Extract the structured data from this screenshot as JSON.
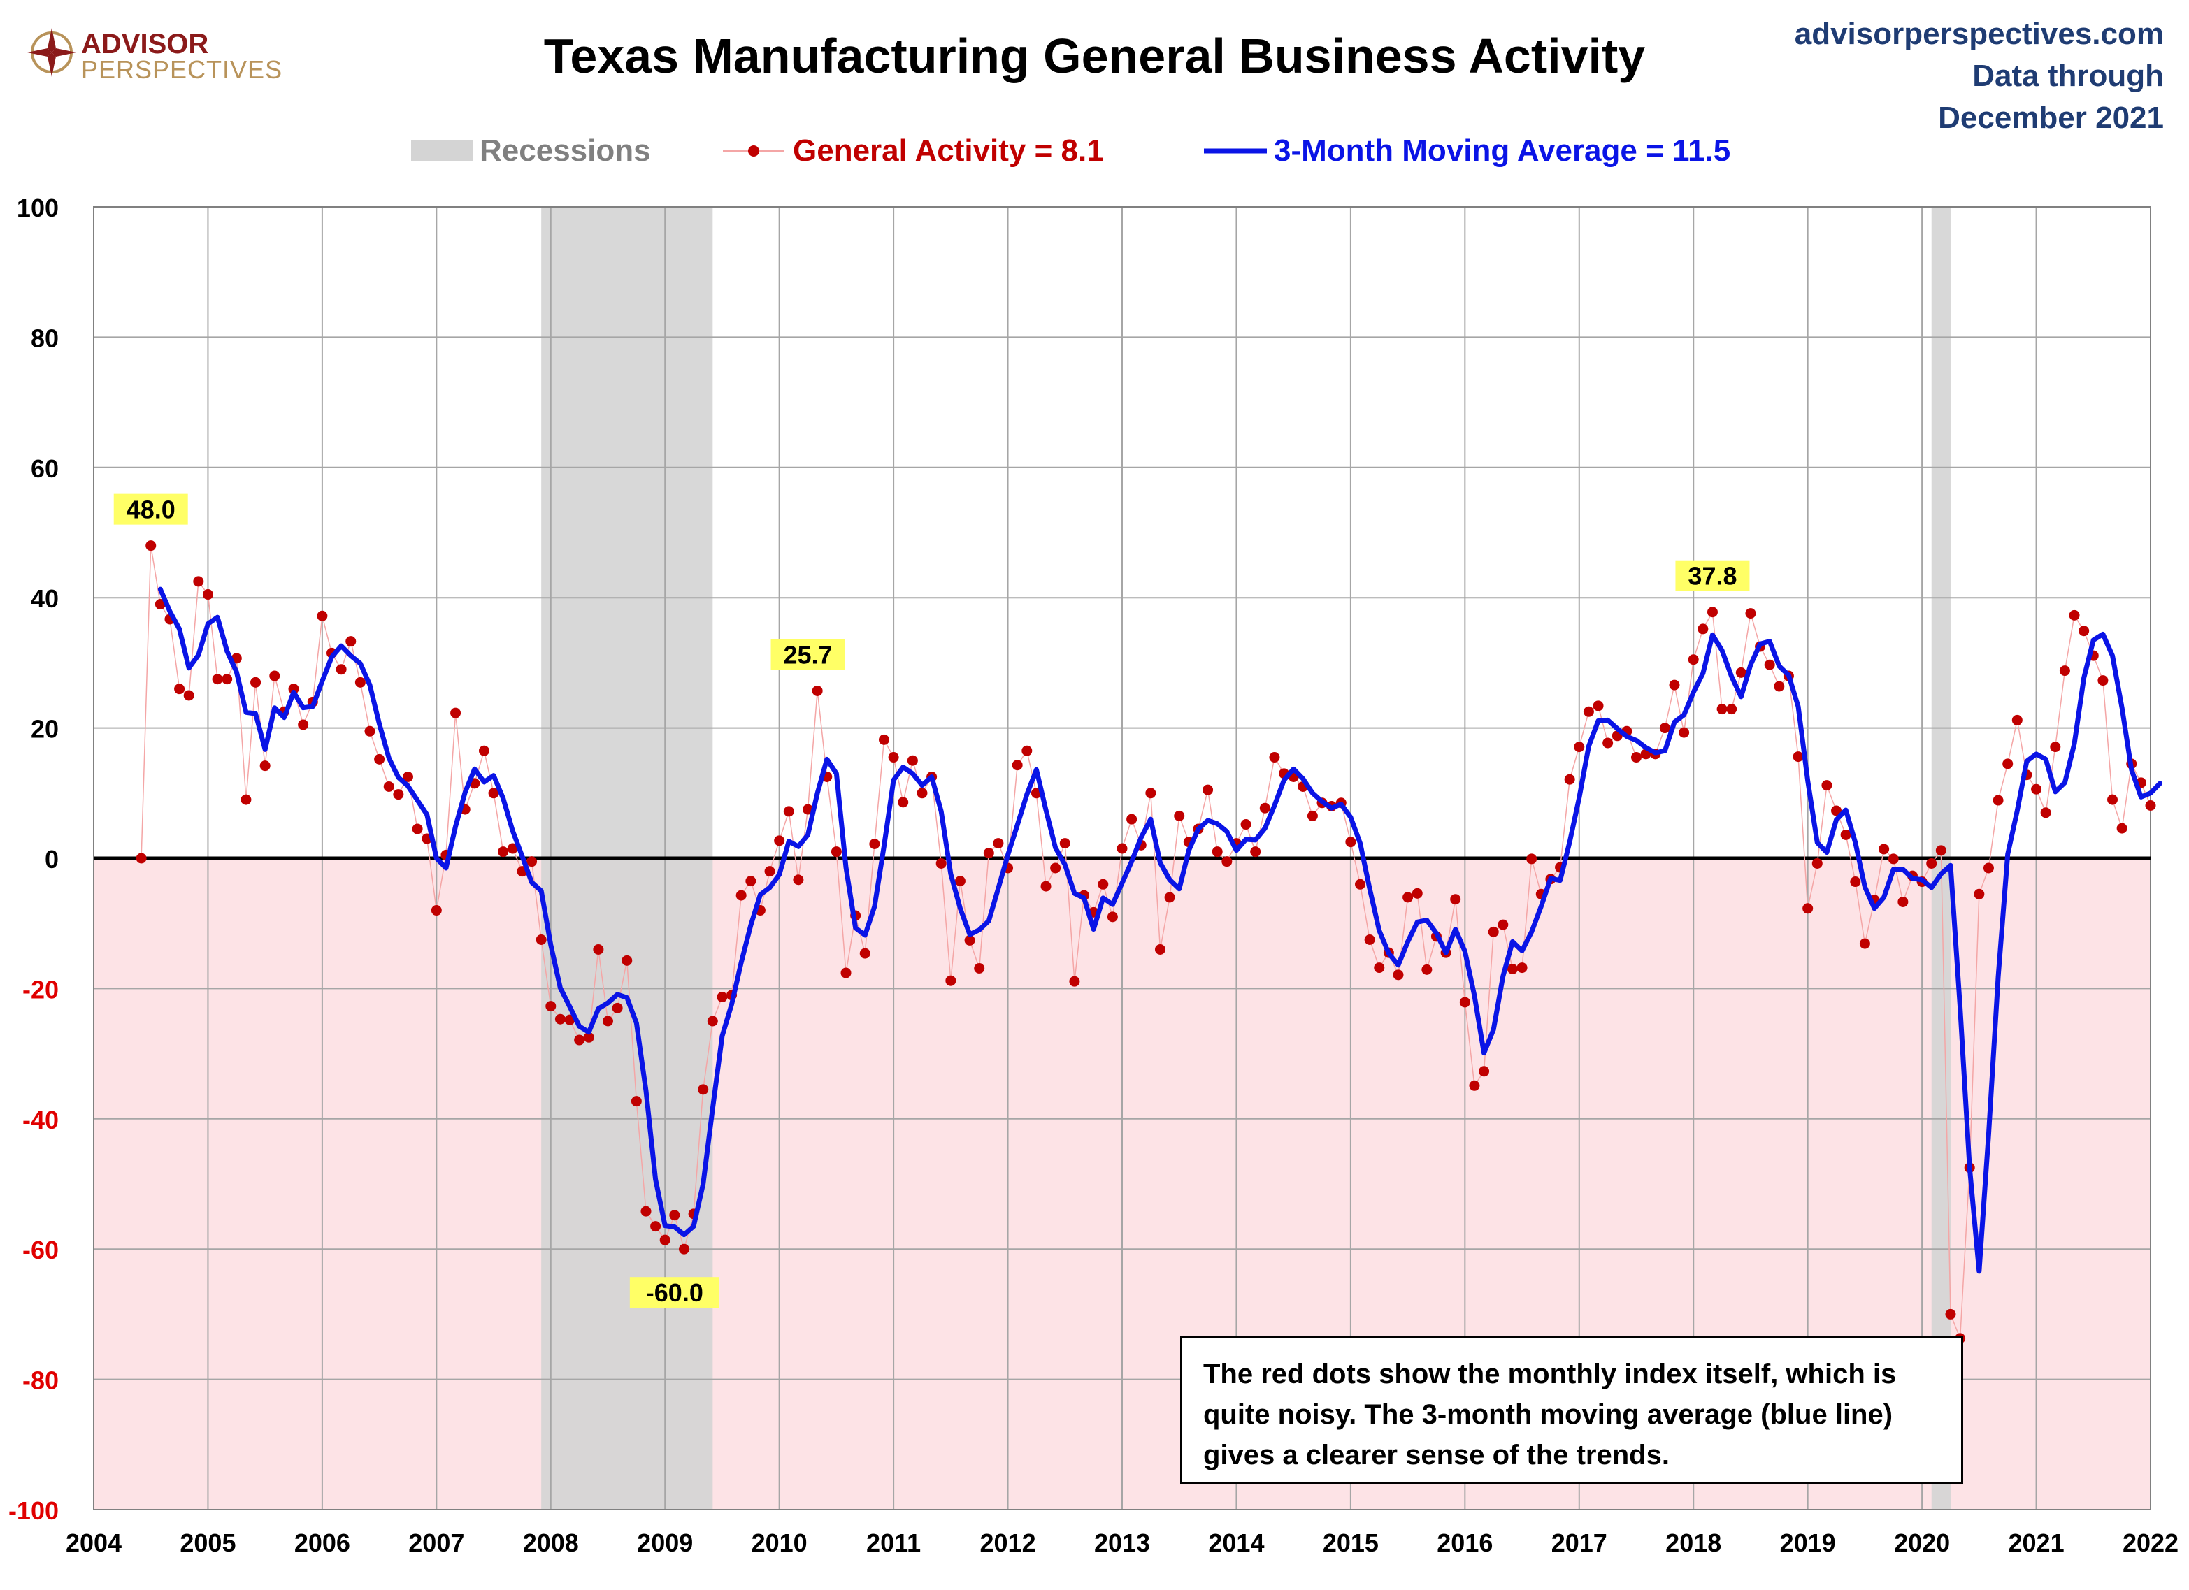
{
  "header": {
    "logo_line1": "ADVISOR",
    "logo_line2": "PERSPECTIVES",
    "title": "Texas Manufacturing General Business Activity",
    "source_site": "advisorperspectives.com",
    "source_line1": "Data through",
    "source_line2": "December 2021"
  },
  "legend": {
    "recessions": "Recessions",
    "series1": "General Activity = 8.1",
    "series2": "3-Month Moving Average = 11.5"
  },
  "callout": "The red dots show the monthly  index itself, which is quite noisy. The 3-month moving average (blue line) gives a clearer sense of the trends.",
  "colors": {
    "dots": "#c00000",
    "ma_line": "#0a14e6",
    "recession": "#d4d4d4",
    "negative_zone": "#fde3e6",
    "annotation_bg": "#ffff66",
    "source_text": "#1f3c73",
    "logo_gold": "#b8935a",
    "logo_red": "#8b1a1a"
  },
  "chart_data": {
    "type": "line",
    "title": "Texas Manufacturing General Business Activity",
    "x_range": [
      2004,
      2022
    ],
    "ylim": [
      -100,
      100
    ],
    "x_ticks": [
      "2004",
      "2005",
      "2006",
      "2007",
      "2008",
      "2009",
      "2010",
      "2011",
      "2012",
      "2013",
      "2014",
      "2015",
      "2016",
      "2017",
      "2018",
      "2019",
      "2020",
      "2021",
      "2022"
    ],
    "y_ticks": [
      100,
      80,
      60,
      40,
      20,
      0,
      -20,
      -40,
      -60,
      -80,
      -100
    ],
    "grid": true,
    "legend_position": "top",
    "recessions": [
      {
        "start": "2007-12",
        "end": "2009-06"
      },
      {
        "start": "2020-02",
        "end": "2020-04"
      }
    ],
    "start_month": "2004-06",
    "series": [
      {
        "name": "General Activity = 8.1",
        "style": "dots",
        "values": [
          0,
          48,
          39,
          36.7,
          26,
          25,
          42.5,
          40.5,
          27.5,
          27.5,
          30.7,
          9,
          27,
          14.2,
          28,
          22.5,
          26,
          20.5,
          24,
          37.2,
          31.5,
          29,
          33.3,
          27,
          19.5,
          15.2,
          11,
          9.8,
          12.5,
          4.5,
          3,
          -8,
          0.5,
          22.3,
          7.5,
          11.5,
          16.5,
          10,
          1,
          1.5,
          -2,
          -0.5,
          -12.5,
          -22.7,
          -24.7,
          -24.8,
          -27.9,
          -27.5,
          -14,
          -25,
          -23,
          -15.7,
          -37.3,
          -54.2,
          -56.5,
          -58.6,
          -54.8,
          -60,
          -54.6,
          -35.5,
          -25,
          -21.3,
          -21,
          -5.7,
          -3.5,
          -8,
          -2,
          2.7,
          7.2,
          -3.3,
          7.5,
          25.7,
          12.5,
          1,
          -17.6,
          -8.8,
          -14.6,
          2.2,
          18.2,
          15.5,
          8.6,
          15,
          10,
          12.5,
          -0.8,
          -18.8,
          -3.5,
          -12.6,
          -16.9,
          0.8,
          2.3,
          -1.5,
          14.3,
          16.5,
          10,
          -4.3,
          -1.5,
          2.3,
          -18.9,
          -5.7,
          -8.3,
          -4,
          -9,
          1.5,
          6,
          2,
          10,
          -14,
          -6,
          6.5,
          2.5,
          4.5,
          10.5,
          1,
          -0.5,
          2.3,
          5.2,
          1,
          7.7,
          15.5,
          13,
          12.5,
          11,
          6.5,
          8.5,
          8,
          8.5,
          2.5,
          -4,
          -12.5,
          -16.8,
          -14.5,
          -17.9,
          -6,
          -5.4,
          -17.1,
          -12,
          -14.5,
          -6.3,
          -22.1,
          -34.9,
          -32.7,
          -11.3,
          -10.2,
          -17,
          -16.8,
          -0.1,
          -5.5,
          -3.2,
          -1.4,
          12.1,
          17.1,
          22.5,
          23.4,
          17.7,
          18.8,
          19.5,
          15.5,
          16,
          16,
          20,
          26.6,
          19.3,
          30.5,
          35.2,
          37.8,
          22.9,
          22.9,
          28.5,
          37.6,
          32.5,
          29.7,
          26.4,
          28,
          15.6,
          -7.7,
          -0.8,
          11.2,
          7.3,
          3.6,
          -3.6,
          -13.1,
          -6.4,
          1.4,
          -0.1,
          -6.7,
          -2.7,
          -3.6,
          -0.8,
          1.2,
          -70,
          -73.7,
          -47.5,
          -5.5,
          -1.5,
          8.9,
          14.5,
          21.2,
          12.8,
          10.6,
          7,
          17.1,
          28.8,
          37.3,
          34.9,
          31.1,
          27.3,
          9,
          4.6,
          14.5,
          11.6,
          8.1
        ]
      },
      {
        "name": "3-Month Moving Average = 11.5",
        "style": "line",
        "start_month": "2004-08",
        "values": [
          41.3,
          37.9,
          35.2,
          29.2,
          31.2,
          36,
          37,
          31.8,
          28.6,
          22.4,
          22.2,
          16.7,
          23.1,
          21.6,
          25.5,
          23.1,
          23.3,
          27.2,
          30.9,
          32.6,
          31.1,
          29.9,
          26.6,
          20.6,
          15.4,
          12.4,
          11.1,
          8.9,
          6.7,
          0,
          -1.5,
          4.9,
          10.1,
          13.7,
          11.7,
          12.7,
          9.2,
          4.2,
          0.3,
          -3.7,
          -5,
          -13.3,
          -19.9,
          -22.8,
          -25.8,
          -26.7,
          -23.1,
          -22.2,
          -20.9,
          -21.4,
          -25.3,
          -35.7,
          -49.3,
          -56.4,
          -56.6,
          -57.8,
          -56.5,
          -50,
          -38.4,
          -27.3,
          -22.4,
          -16,
          -10.3,
          -5.6,
          -4.5,
          -2.5,
          2.6,
          1.8,
          3.6,
          10,
          15.2,
          13,
          -1.4,
          -10.7,
          -11.8,
          -7.4,
          1.9,
          12,
          14,
          13,
          11.2,
          12.5,
          7.2,
          -2.4,
          -7.7,
          -11.7,
          -11,
          -9.6,
          -4.6,
          0.5,
          5.1,
          9.8,
          13.6,
          7.4,
          1.6,
          -1,
          -5.4,
          -6.1,
          -10.9,
          -6.1,
          -7.1,
          -3.8,
          -0.5,
          3.2,
          6,
          -0.7,
          -3.3,
          -4.7,
          1.2,
          4.5,
          5.8,
          5.3,
          4.1,
          1.2,
          2.9,
          2.8,
          4.6,
          8.1,
          12,
          13.7,
          12.2,
          10,
          8.7,
          7.7,
          8.3,
          6.3,
          2.3,
          -4.7,
          -11.1,
          -14.6,
          -16.4,
          -12.8,
          -9.8,
          -9.5,
          -11.5,
          -14.5,
          -10.9,
          -14.3,
          -21.1,
          -29.9,
          -26.3,
          -18.1,
          -12.8,
          -14.2,
          -11.3,
          -7.4,
          -3.1,
          -3.4,
          2.5,
          9.3,
          17.2,
          21.1,
          21.2,
          19.9,
          18.7,
          18.1,
          17,
          16.2,
          16.5,
          20.9,
          22,
          25.5,
          28.4,
          34.3,
          31.9,
          27.9,
          24.8,
          29.7,
          32.9,
          33.3,
          29.5,
          28.1,
          23.3,
          11.9,
          2.4,
          0.9,
          5.9,
          7.4,
          2.4,
          -4.4,
          -7.7,
          -6,
          -1.7,
          -1.7,
          -3.1,
          -3.3,
          -4.5,
          -2.4,
          -1.1,
          -22.9,
          -47.5,
          -63.4,
          -42.3,
          -18.2,
          0.6,
          7.3,
          14.9,
          16,
          15.2,
          10.2,
          11.6,
          17.6,
          27.7,
          33.5,
          34.4,
          31.1,
          23.1,
          13.6,
          9.4,
          10,
          11.5
        ]
      }
    ],
    "annotations": [
      {
        "label": "48.0",
        "x": "2004-07",
        "y": 48
      },
      {
        "label": "-60.0",
        "x": "2009-02",
        "y": -60
      },
      {
        "label": "25.7",
        "x": "2010-04",
        "y": 25.7
      },
      {
        "label": "37.8",
        "x": "2018-03",
        "y": 37.8
      }
    ]
  }
}
